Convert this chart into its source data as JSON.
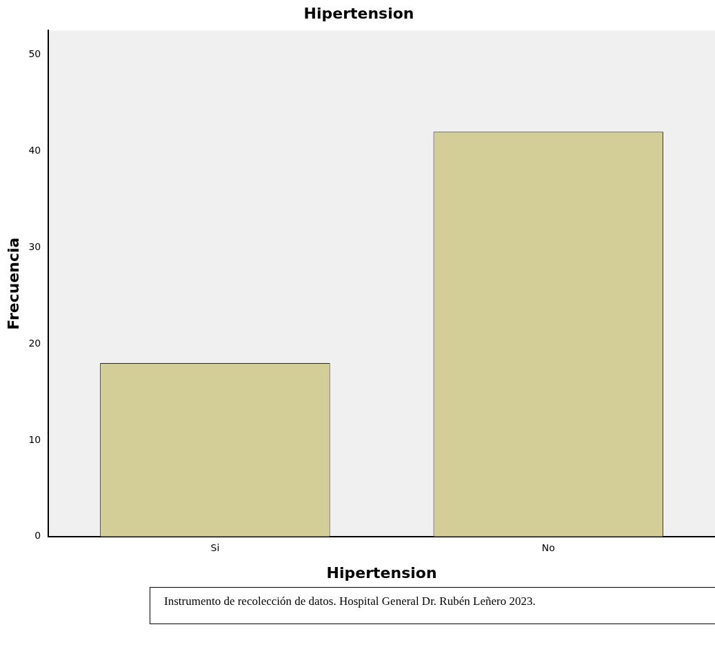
{
  "chart_data": {
    "type": "bar",
    "title": "Hipertension",
    "xlabel": "Hipertension",
    "ylabel": "Frecuencia",
    "categories": [
      "Si",
      "No"
    ],
    "values": [
      18,
      42
    ],
    "color": "#d3ce97",
    "ylim": [
      0,
      52.5
    ],
    "yticks": [
      0,
      10,
      20,
      30,
      40,
      50
    ],
    "grid": false,
    "legend": false,
    "annotations": [
      "Instrumento de recolección de datos. Hospital General Dr. Rubén Leñero 2023."
    ]
  }
}
